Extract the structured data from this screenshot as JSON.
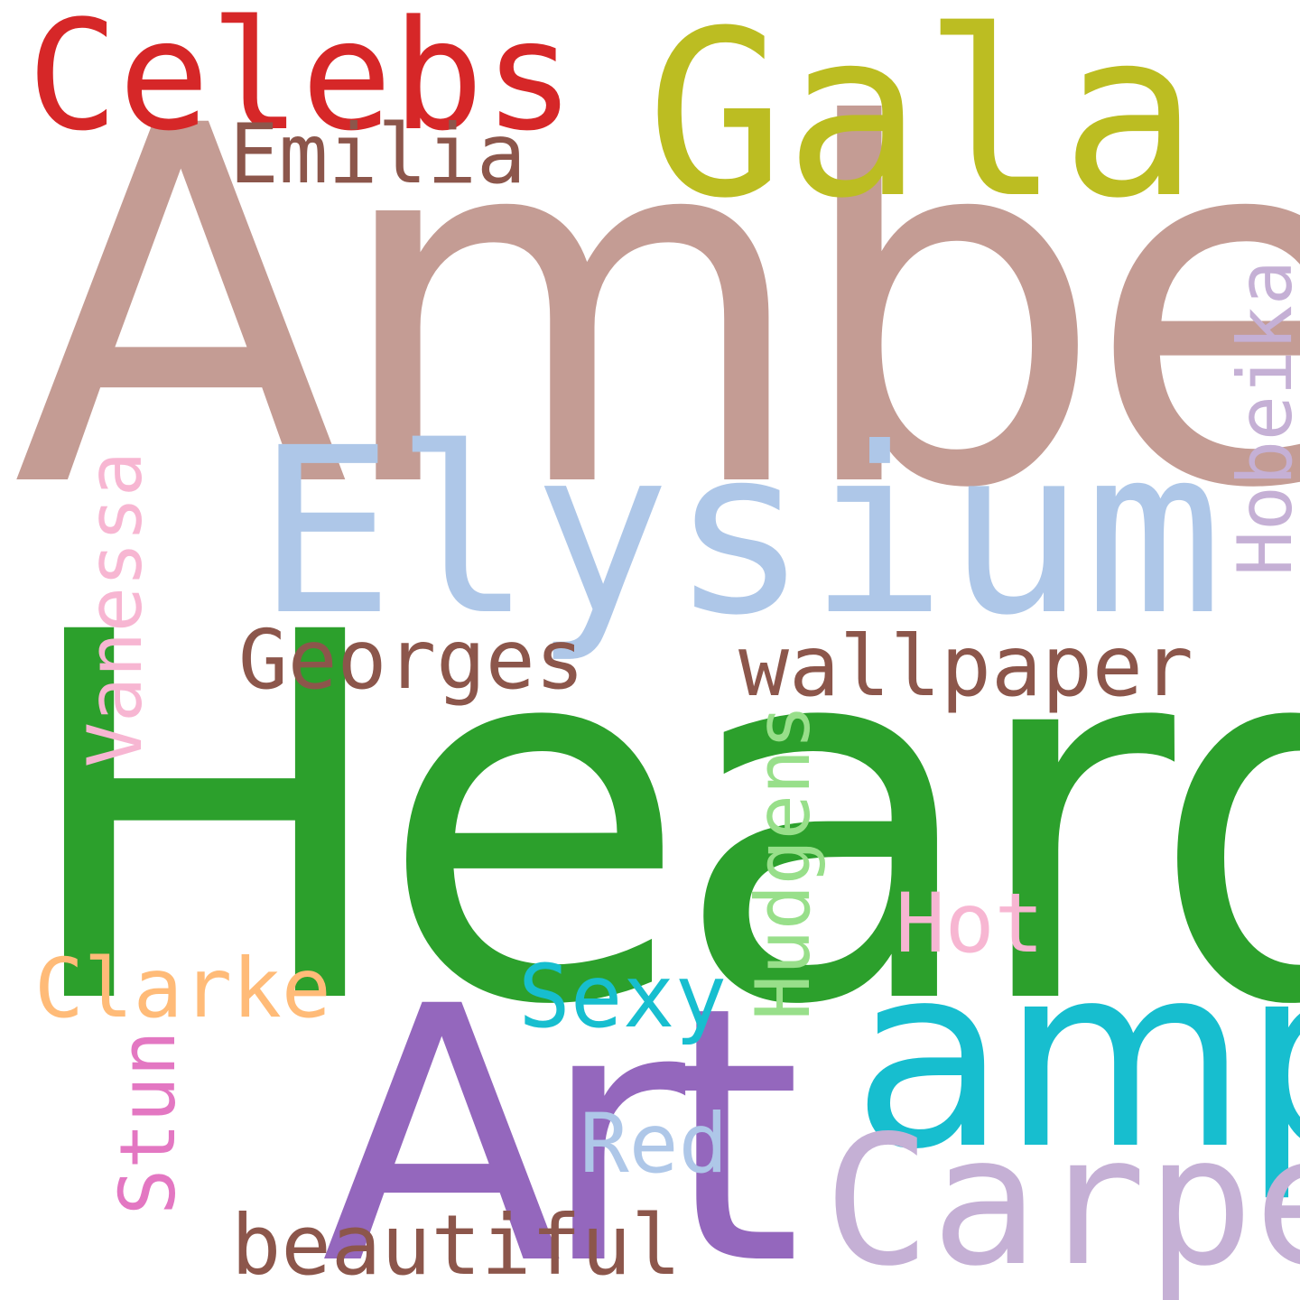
{
  "words": {
    "amber": {
      "text": "Amber",
      "color": "#c49c94"
    },
    "heard": {
      "text": "Heard",
      "color": "#2ca02c"
    },
    "elysium": {
      "text": "Elysium",
      "color": "#aec7e8"
    },
    "gala": {
      "text": "Gala",
      "color": "#bcbd22"
    },
    "celebs": {
      "text": "Celebs",
      "color": "#d62728"
    },
    "emilia": {
      "text": "Emilia",
      "color": "#8c564b"
    },
    "georges": {
      "text": "Georges",
      "color": "#8c564b"
    },
    "wallpaper": {
      "text": "wallpaper",
      "color": "#8c564b"
    },
    "art": {
      "text": "Art",
      "color": "#9467bd"
    },
    "amp": {
      "text": "amp",
      "color": "#17becf"
    },
    "carpet": {
      "text": "Carpet",
      "color": "#c5b0d5"
    },
    "clarke": {
      "text": "Clarke",
      "color": "#ffbb78"
    },
    "sexy": {
      "text": "Sexy",
      "color": "#17becf"
    },
    "hot": {
      "text": "Hot",
      "color": "#f7b6d2"
    },
    "red": {
      "text": "Red",
      "color": "#aec7e8"
    },
    "beautiful": {
      "text": "beautiful",
      "color": "#8c564b"
    },
    "vanessa": {
      "text": "Vanessa",
      "color": "#f7b6d2"
    },
    "hobeika": {
      "text": "Hobeika",
      "color": "#c5b0d5"
    },
    "hudgens": {
      "text": "Hudgens",
      "color": "#98df8a"
    },
    "stun": {
      "text": "Stun",
      "color": "#e377c2"
    }
  }
}
